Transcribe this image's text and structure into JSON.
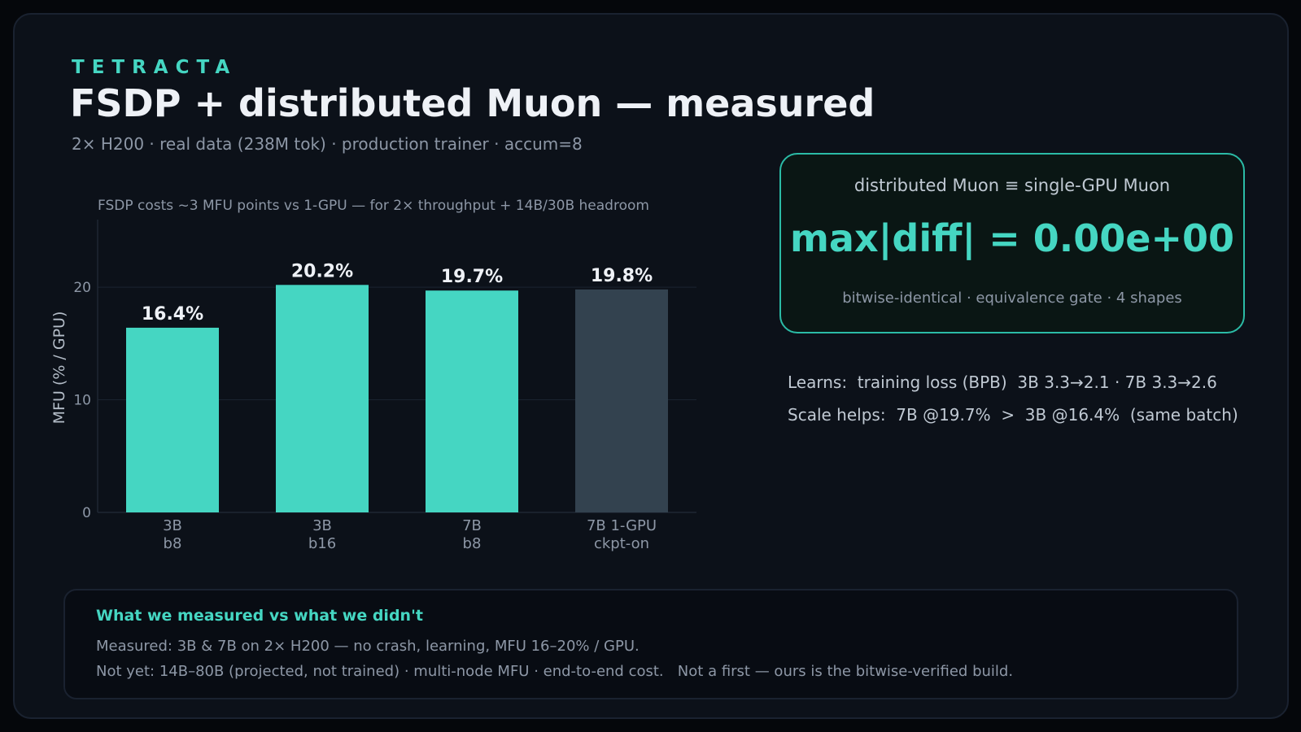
{
  "header": {
    "brand": "TETRACTA",
    "title": "FSDP + distributed Muon — measured",
    "subtitle": "2× H200 · real data (238M tok) · production trainer · accum=8"
  },
  "chart_data": {
    "type": "bar",
    "title": "FSDP costs ~3 MFU points vs 1-GPU — for 2× throughput + 14B/30B headroom",
    "ylabel": "MFU  (% / GPU)",
    "xlabel": "",
    "categories": [
      [
        "3B",
        "b8"
      ],
      [
        "3B",
        "b16"
      ],
      [
        "7B",
        "b8"
      ],
      [
        "7B 1-GPU",
        "ckpt-on"
      ]
    ],
    "values": [
      16.4,
      20.2,
      19.7,
      19.8
    ],
    "value_labels": [
      "16.4%",
      "20.2%",
      "19.7%",
      "19.8%"
    ],
    "bar_colors": [
      "#45d6c2",
      "#45d6c2",
      "#45d6c2",
      "#33424f"
    ],
    "yticks": [
      0,
      10,
      20
    ],
    "ylim": [
      0,
      26
    ],
    "grid": true
  },
  "gate": {
    "line1": "distributed Muon  ≡  single-GPU Muon",
    "value": "max|diff| = 0.00e+00",
    "note": "bitwise-identical · equivalence gate · 4 shapes"
  },
  "facts": {
    "learns": "Learns:  training loss (BPB)  3B 3.3→2.1 · 7B 3.3→2.6",
    "scale": "Scale helps:  7B @19.7%  >  3B @16.4%  (same batch)"
  },
  "notes": {
    "heading": "What we measured vs what we didn't",
    "measured": "Measured: 3B & 7B on 2× H200 — no crash, learning, MFU 16–20% / GPU.",
    "not_yet": "Not yet: 14B–80B (projected, not trained) · multi-node MFU · end-to-end cost.   Not a first — ours is the bitwise-verified build."
  },
  "colors": {
    "accent": "#45d6c2",
    "muted_bar": "#33424f",
    "background": "#0c1119"
  }
}
